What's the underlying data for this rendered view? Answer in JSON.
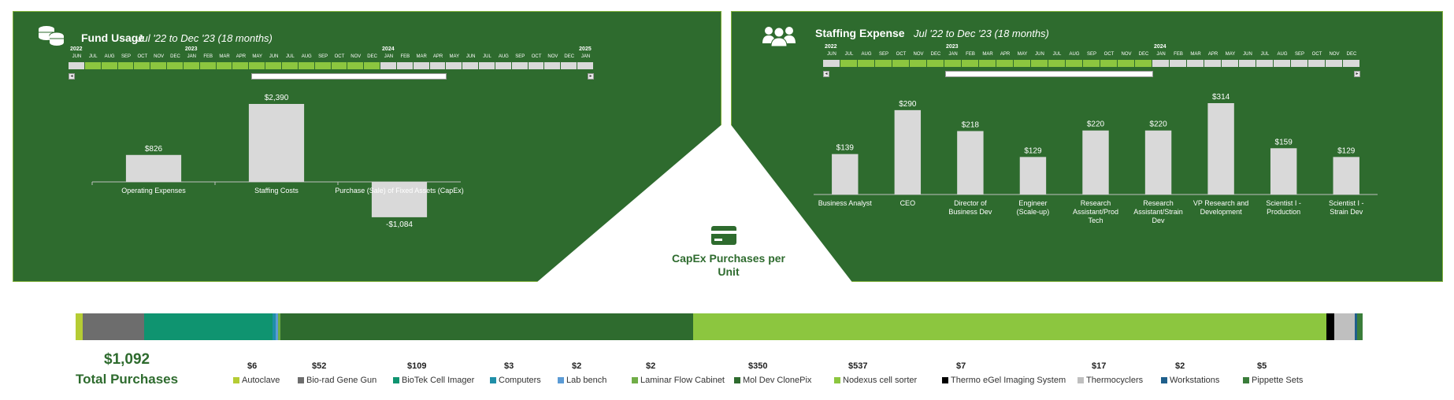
{
  "fund_usage": {
    "title": "Fund Usage",
    "subtitle": "Jul '22 to Dec '23 (18 months)",
    "icon": "coins-icon",
    "timeline": {
      "years": [
        "2022",
        "2023",
        "2024",
        "2025"
      ],
      "months": [
        "JUN",
        "JUL",
        "AUG",
        "SEP",
        "OCT",
        "NOV",
        "DEC",
        "JAN",
        "FEB",
        "MAR",
        "APR",
        "MAY",
        "JUN",
        "JUL",
        "AUG",
        "SEP",
        "OCT",
        "NOV",
        "DEC",
        "JAN",
        "FEB",
        "MAR",
        "APR",
        "MAY",
        "JUN",
        "JUL",
        "AUG",
        "SEP",
        "OCT",
        "NOV",
        "DEC",
        "JAN"
      ],
      "selected_start": 1,
      "selected_end": 18
    },
    "chart_data": {
      "type": "bar",
      "categories": [
        "Operating Expenses",
        "Staffing Costs",
        "Purchase (Sale) of Fixed Assets (CapEx)"
      ],
      "values": [
        826,
        2390,
        -1084
      ],
      "value_labels": [
        "$826",
        "$2,390",
        "-$1,084"
      ],
      "ylim": [
        -1200,
        2600
      ]
    }
  },
  "staffing": {
    "title": "Staffing Expense",
    "subtitle": "Jul '22 to Dec '23 (18 months)",
    "icon": "people-group-icon",
    "timeline": {
      "years": [
        "2022",
        "2023",
        "2024"
      ],
      "months": [
        "JUN",
        "JUL",
        "AUG",
        "SEP",
        "OCT",
        "NOV",
        "DEC",
        "JAN",
        "FEB",
        "MAR",
        "APR",
        "MAY",
        "JUN",
        "JUL",
        "AUG",
        "SEP",
        "OCT",
        "NOV",
        "DEC",
        "JAN",
        "FEB",
        "MAR",
        "APR",
        "MAY",
        "JUN",
        "JUL",
        "AUG",
        "SEP",
        "OCT",
        "NOV",
        "DEC"
      ],
      "selected_start": 1,
      "selected_end": 18
    },
    "chart_data": {
      "type": "bar",
      "categories": [
        "Business Analyst",
        "CEO",
        "Director of Business Dev",
        "Engineer (Scale-up)",
        "Research Assistant/Prod Tech",
        "Research Assistant/Strain Dev",
        "VP Research and Development",
        "Scientist I - Production",
        "Scientist I - Strain Dev"
      ],
      "values": [
        139,
        290,
        218,
        129,
        220,
        220,
        314,
        159,
        129
      ],
      "value_labels": [
        "$139",
        "$290",
        "$218",
        "$129",
        "$220",
        "$220",
        "$314",
        "$159",
        "$129"
      ],
      "ylim": [
        0,
        340
      ]
    }
  },
  "capex": {
    "title": "CapEx Purchases per Unit",
    "icon": "credit-card-icon",
    "total_value": "$1,092",
    "total_label": "Total Purchases",
    "chart_data": {
      "type": "bar",
      "stacked": true,
      "categories": [
        "Autoclave",
        "Bio-rad Gene Gun",
        "BioTek Cell Imager",
        "Computers",
        "Lab bench",
        "Laminar Flow Cabinet",
        "Mol Dev ClonePix",
        "Nodexus cell sorter",
        "Thermo eGel Imaging System",
        "Thermocyclers",
        "Workstations",
        "Pippette Sets"
      ],
      "values": [
        6,
        52,
        109,
        3,
        2,
        2,
        350,
        537,
        7,
        17,
        2,
        5
      ],
      "value_labels": [
        "$6",
        "$52",
        "$109",
        "$3",
        "$2",
        "$2",
        "$350",
        "$537",
        "$7",
        "$17",
        "$2",
        "$5"
      ],
      "colors": [
        "#b5cc34",
        "#6d6d6d",
        "#0f9470",
        "#1f8fa8",
        "#5b9bd5",
        "#70ad47",
        "#2e6b2e",
        "#8cc63f",
        "#000000",
        "#bfbfbf",
        "#1f5f8b",
        "#3a7d3a"
      ]
    }
  }
}
